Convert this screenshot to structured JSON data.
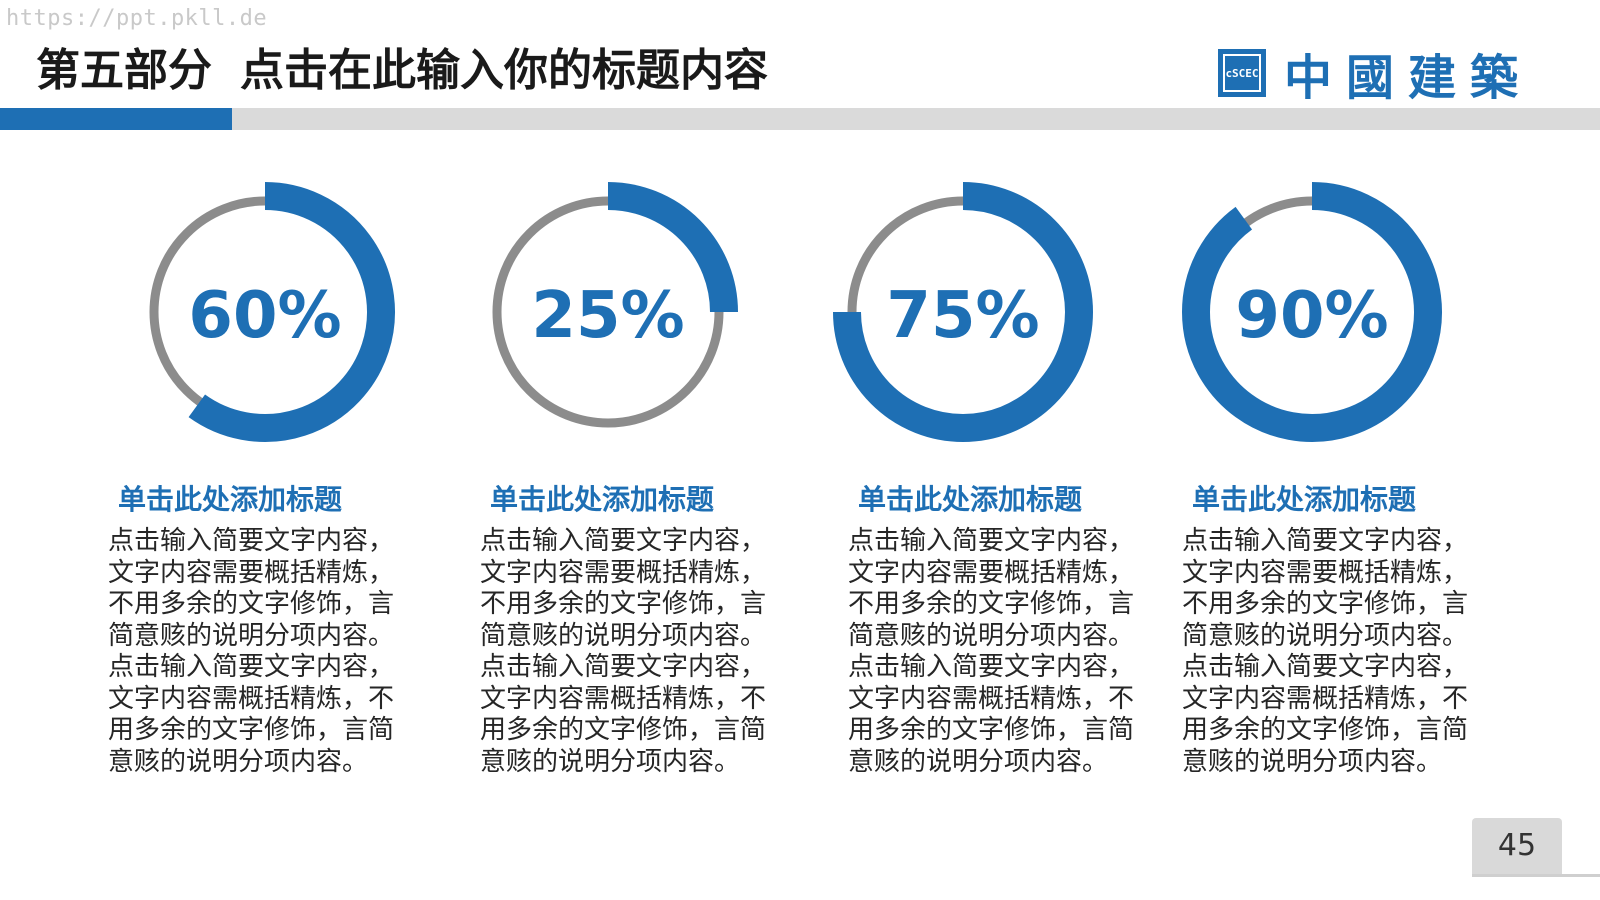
{
  "watermark": "https://ppt.pkll.de",
  "header": {
    "section": "第五部分",
    "title": "点击在此输入你的标题内容"
  },
  "logo": {
    "mark_text": "cSCEC",
    "name": "中國建築"
  },
  "colors": {
    "accent": "#1e6fb4",
    "track": "#8c8c8c",
    "band": "#dadada"
  },
  "chart_data": {
    "type": "donut",
    "values": [
      60,
      25,
      75,
      90
    ],
    "labels": [
      "60%",
      "25%",
      "75%",
      "90%"
    ]
  },
  "items": [
    {
      "heading": "单击此处添加标题",
      "body": "点击输入简要文字内容，文字内容需要概括精炼，不用多余的文字修饰，言简意赅的说明分项内容。点击输入简要文字内容，文字内容需概括精炼，不用多余的文字修饰，言简意赅的说明分项内容。"
    },
    {
      "heading": "单击此处添加标题",
      "body": "点击输入简要文字内容，文字内容需要概括精炼，不用多余的文字修饰，言简意赅的说明分项内容。点击输入简要文字内容，文字内容需概括精炼，不用多余的文字修饰，言简意赅的说明分项内容。"
    },
    {
      "heading": "单击此处添加标题",
      "body": "点击输入简要文字内容，文字内容需要概括精炼，不用多余的文字修饰，言简意赅的说明分项内容。点击输入简要文字内容，文字内容需概括精炼，不用多余的文字修饰，言简意赅的说明分项内容。"
    },
    {
      "heading": "单击此处添加标题",
      "body": "点击输入简要文字内容，文字内容需要概括精炼，不用多余的文字修饰，言简意赅的说明分项内容。点击输入简要文字内容，文字内容需概括精炼，不用多余的文字修饰，言简意赅的说明分项内容。"
    }
  ],
  "page_number": "45"
}
